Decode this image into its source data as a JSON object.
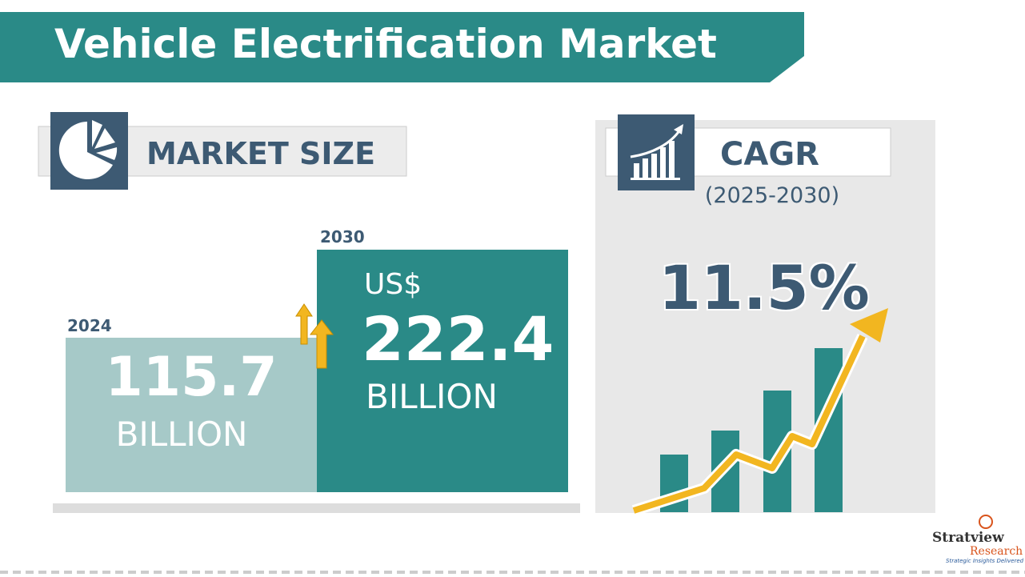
{
  "header": {
    "title": "Vehicle Electrification Market"
  },
  "market_size": {
    "label": "MARKET SIZE",
    "start": {
      "year": "2024",
      "value": "115.7",
      "unit": "BILLION"
    },
    "end": {
      "year": "2030",
      "currency": "US$",
      "value": "222.4",
      "unit": "BILLION"
    }
  },
  "cagr": {
    "label": "CAGR",
    "period": "(2025-2030)",
    "value": "11.5%"
  },
  "logo": {
    "name": "Stratview",
    "sub": "Research",
    "tagline": "Strategic Insights Delivered"
  }
}
